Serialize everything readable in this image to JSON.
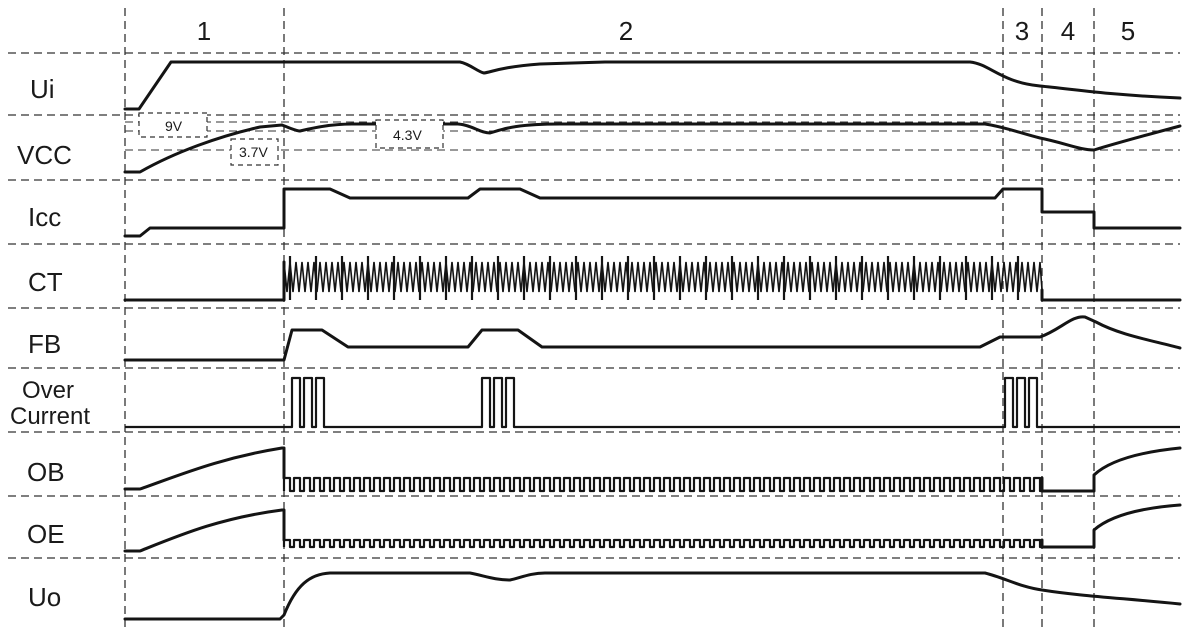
{
  "phases": [
    "1",
    "2",
    "3",
    "4",
    "5"
  ],
  "signals": [
    {
      "key": "ui",
      "label": "Ui"
    },
    {
      "key": "vcc",
      "label": "VCC"
    },
    {
      "key": "icc",
      "label": "Icc"
    },
    {
      "key": "ct",
      "label": "CT"
    },
    {
      "key": "fb",
      "label": "FB"
    },
    {
      "key": "oc",
      "label_line1": "Over",
      "label_line2": "Current"
    },
    {
      "key": "ob",
      "label": "OB"
    },
    {
      "key": "oe",
      "label": "OE"
    },
    {
      "key": "uo",
      "label": "Uo"
    }
  ],
  "annotations": {
    "v9": "9V",
    "v37": "3.7V",
    "v43": "4.3V"
  }
}
